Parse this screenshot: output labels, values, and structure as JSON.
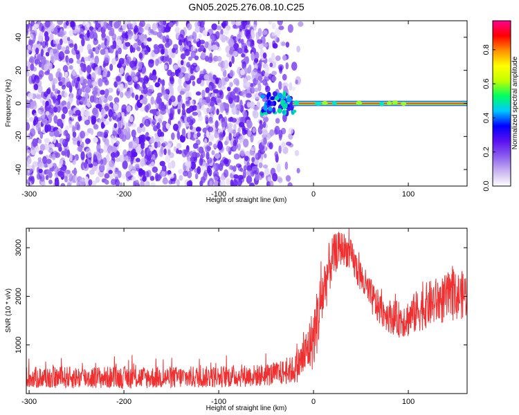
{
  "title": "GN05.2025.276.08.10.C25",
  "chart_data": [
    {
      "type": "heatmap",
      "title": "GN05.2025.276.08.10.C25",
      "xlabel": "Height of straight line (km)",
      "ylabel": "Frequency (Hz)",
      "xlim": [
        -303,
        162
      ],
      "ylim": [
        -50,
        50
      ],
      "x_ticks": [
        "-300",
        "-200",
        "-100",
        "0",
        "100"
      ],
      "y_ticks": [
        "-40",
        "-20",
        "0",
        "20",
        "40"
      ],
      "grid": false,
      "features": {
        "noise_region_x": [
          -303,
          -25
        ],
        "signal_band_x": [
          -22,
          162
        ],
        "signal_band_freq_hz": [
          -1,
          1
        ]
      },
      "colorbar": {
        "label": "Normalized spectral amplitude",
        "range": [
          0,
          0.97
        ],
        "ticks": [
          "0.0",
          "0.2",
          "0.4",
          "0.6",
          "0.8"
        ],
        "colors": [
          "#ffffff",
          "#c9b3f0",
          "#8a5cf0",
          "#5a10f0",
          "#0000ff",
          "#00c8ff",
          "#00ff60",
          "#c0ff00",
          "#ffff00",
          "#ff9000",
          "#ff0000",
          "#ff0090"
        ]
      }
    },
    {
      "type": "line",
      "xlabel": "Height of straight line (km)",
      "ylabel": "SNR (10 * v/v)",
      "xlim": [
        -303,
        162
      ],
      "ylim": [
        0,
        3400
      ],
      "x_ticks": [
        "-300",
        "-200",
        "-100",
        "0",
        "100"
      ],
      "y_ticks": [
        "1000",
        "2000",
        "3000"
      ],
      "grid": false,
      "series": [
        {
          "color": "#f03030",
          "envelope_x": [
            -303,
            -250,
            -200,
            -150,
            -100,
            -80,
            -60,
            -40,
            -30,
            -20,
            -15,
            -10,
            -5,
            0,
            5,
            10,
            15,
            20,
            25,
            30,
            35,
            40,
            45,
            50,
            55,
            60,
            65,
            70,
            80,
            90,
            100,
            110,
            120,
            130,
            140,
            150,
            162
          ],
          "envelope_lo": [
            100,
            100,
            100,
            100,
            120,
            130,
            140,
            160,
            180,
            200,
            250,
            300,
            400,
            500,
            900,
            1400,
            1900,
            2300,
            2550,
            2650,
            2600,
            2450,
            2250,
            2050,
            1850,
            1650,
            1500,
            1400,
            1250,
            1150,
            1150,
            1250,
            1350,
            1400,
            1450,
            1500,
            1550
          ],
          "envelope_hi": [
            550,
            560,
            560,
            560,
            570,
            590,
            600,
            650,
            700,
            800,
            1000,
            1200,
            1500,
            1800,
            2300,
            2750,
            3050,
            3250,
            3330,
            3350,
            3280,
            3150,
            2950,
            2750,
            2550,
            2380,
            2220,
            2080,
            1950,
            1900,
            1950,
            2150,
            2300,
            2400,
            2450,
            2500,
            2550
          ]
        }
      ]
    }
  ]
}
